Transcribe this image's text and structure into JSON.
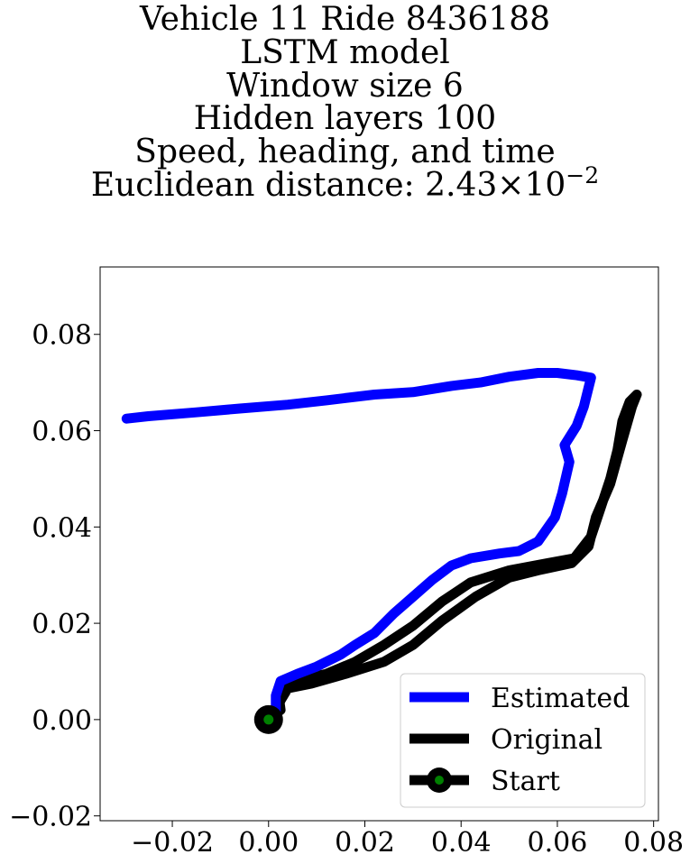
{
  "chart_data": {
    "type": "line",
    "title_lines": [
      "Vehicle 11 Ride 8436188",
      "LSTM model",
      "Window size 6",
      "Hidden layers 100",
      "Speed, heading, and time"
    ],
    "distance_prefix": "Euclidean distance: ",
    "distance_mantissa": "2.43",
    "distance_times": "×",
    "distance_base": "10",
    "distance_exponent": "−2",
    "xlim": [
      -0.035,
      0.081
    ],
    "ylim": [
      -0.021,
      0.094
    ],
    "xticks": [
      -0.02,
      0.0,
      0.02,
      0.04,
      0.06,
      0.08
    ],
    "xtick_labels": [
      "−0.02",
      "0.00",
      "0.02",
      "0.04",
      "0.06",
      "0.08"
    ],
    "yticks": [
      -0.02,
      0.0,
      0.02,
      0.04,
      0.06,
      0.08
    ],
    "ytick_labels": [
      "−0.02",
      "0.00",
      "0.02",
      "0.04",
      "0.06",
      "0.08"
    ],
    "grid": false,
    "legend_position": "lower-right",
    "series": [
      {
        "name": "Estimated",
        "color": "#0000ff",
        "points": [
          [
            0.0,
            0.0
          ],
          [
            0.0015,
            0.001
          ],
          [
            0.0015,
            0.005
          ],
          [
            0.0025,
            0.008
          ],
          [
            0.006,
            0.0095
          ],
          [
            0.01,
            0.011
          ],
          [
            0.015,
            0.0135
          ],
          [
            0.018,
            0.0155
          ],
          [
            0.022,
            0.018
          ],
          [
            0.026,
            0.022
          ],
          [
            0.03,
            0.0255
          ],
          [
            0.034,
            0.029
          ],
          [
            0.038,
            0.032
          ],
          [
            0.042,
            0.0335
          ],
          [
            0.048,
            0.0345
          ],
          [
            0.052,
            0.035
          ],
          [
            0.056,
            0.037
          ],
          [
            0.0595,
            0.042
          ],
          [
            0.061,
            0.047
          ],
          [
            0.0625,
            0.0535
          ],
          [
            0.0615,
            0.057
          ],
          [
            0.064,
            0.061
          ],
          [
            0.0655,
            0.065
          ],
          [
            0.0665,
            0.069
          ],
          [
            0.067,
            0.071
          ],
          [
            0.064,
            0.0715
          ],
          [
            0.06,
            0.072
          ],
          [
            0.056,
            0.072
          ],
          [
            0.05,
            0.0712
          ],
          [
            0.044,
            0.07
          ],
          [
            0.038,
            0.0693
          ],
          [
            0.03,
            0.068
          ],
          [
            0.022,
            0.0675
          ],
          [
            0.012,
            0.0663
          ],
          [
            0.004,
            0.0654
          ],
          [
            -0.006,
            0.0646
          ],
          [
            -0.015,
            0.0638
          ],
          [
            -0.025,
            0.063
          ],
          [
            -0.0295,
            0.0625
          ]
        ]
      },
      {
        "name": "Original",
        "color": "#000000",
        "points": [
          [
            0.0,
            0.0
          ],
          [
            0.0025,
            0.002
          ],
          [
            0.002,
            0.006
          ],
          [
            0.005,
            0.008
          ],
          [
            0.012,
            0.0095
          ],
          [
            0.018,
            0.012
          ],
          [
            0.024,
            0.0155
          ],
          [
            0.03,
            0.0195
          ],
          [
            0.036,
            0.0245
          ],
          [
            0.042,
            0.0285
          ],
          [
            0.05,
            0.031
          ],
          [
            0.058,
            0.0325
          ],
          [
            0.0635,
            0.0335
          ],
          [
            0.067,
            0.038
          ],
          [
            0.069,
            0.044
          ],
          [
            0.071,
            0.05
          ],
          [
            0.0725,
            0.056
          ],
          [
            0.0735,
            0.062
          ],
          [
            0.075,
            0.066
          ],
          [
            0.0765,
            0.0675
          ],
          [
            0.0755,
            0.065
          ],
          [
            0.0735,
            0.058
          ],
          [
            0.071,
            0.049
          ],
          [
            0.068,
            0.042
          ],
          [
            0.0665,
            0.036
          ],
          [
            0.063,
            0.0325
          ],
          [
            0.056,
            0.031
          ],
          [
            0.05,
            0.0295
          ],
          [
            0.043,
            0.0255
          ],
          [
            0.036,
            0.0205
          ],
          [
            0.03,
            0.0155
          ],
          [
            0.024,
            0.012
          ],
          [
            0.016,
            0.0095
          ],
          [
            0.009,
            0.0075
          ],
          [
            0.004,
            0.0065
          ],
          [
            0.0025,
            0.004
          ],
          [
            0.0015,
            0.001
          ]
        ]
      }
    ],
    "start_marker": {
      "name": "Start",
      "point": [
        0.0,
        0.0
      ],
      "edge_color": "#000000",
      "face_color": "#008000"
    }
  }
}
